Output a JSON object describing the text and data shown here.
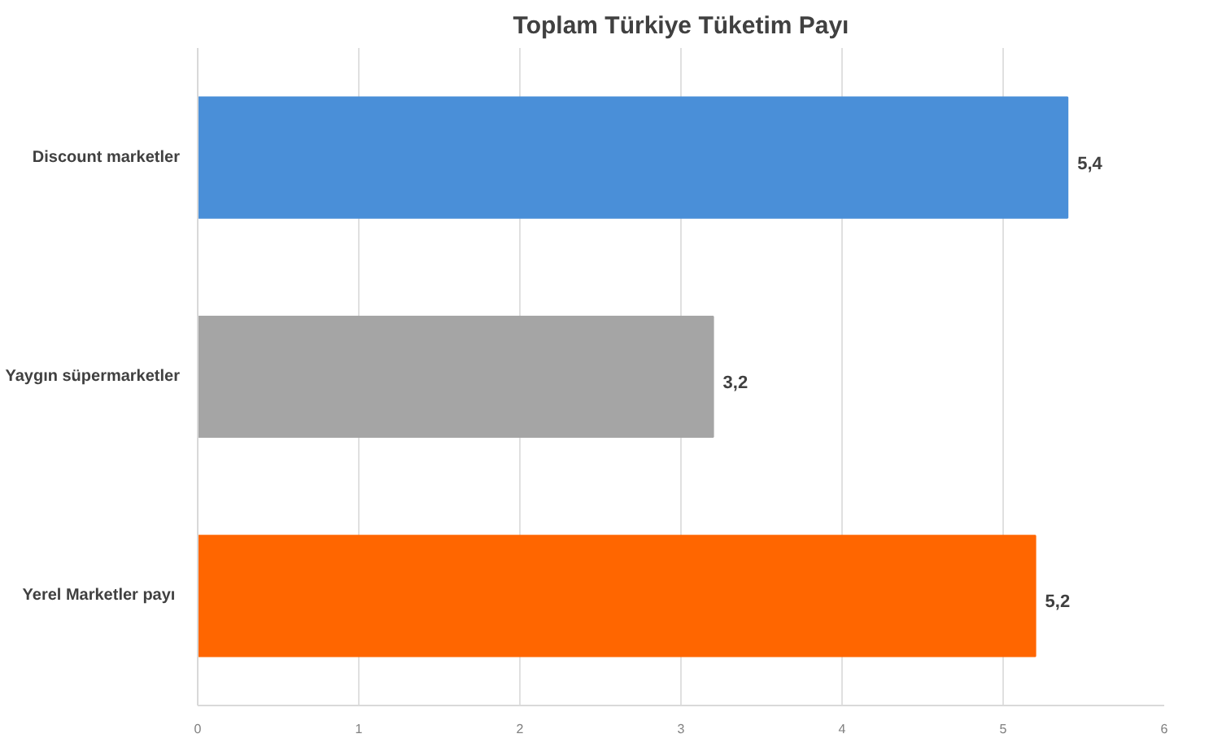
{
  "chart_data": {
    "type": "bar",
    "orientation": "horizontal",
    "title": "Toplam Türkiye Tüketim Payı",
    "categories": [
      "Discount marketler",
      "Yaygın süpermarketler",
      "Yerel Marketler  payı"
    ],
    "values": [
      5.4,
      3.2,
      5.2
    ],
    "colors": [
      "#4a8fd8",
      "#a5a5a5",
      "#ff6600"
    ],
    "value_labels": [
      "5,4",
      "3,2",
      "5,2"
    ],
    "xlim": [
      0,
      6
    ],
    "xticks": [
      0,
      1,
      2,
      3,
      4,
      5,
      6
    ],
    "grid": "x"
  }
}
